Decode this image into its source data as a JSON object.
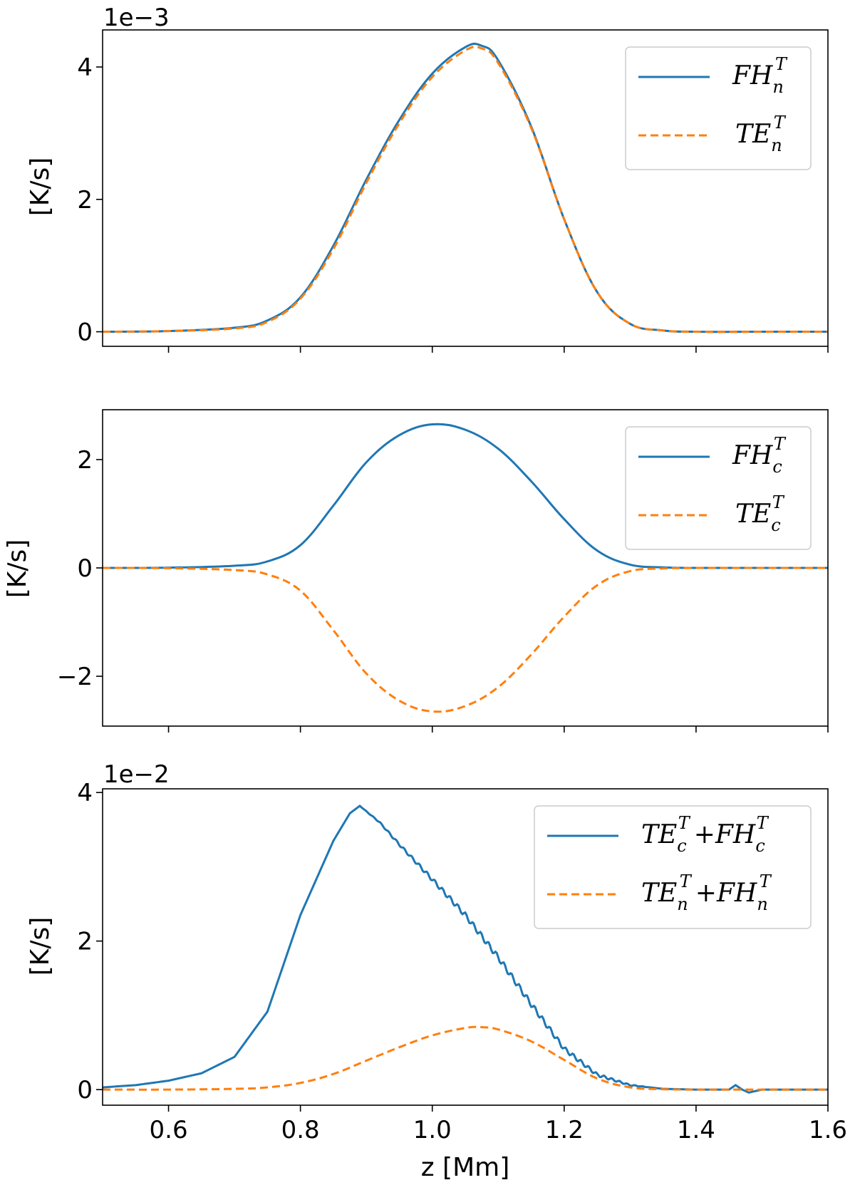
{
  "colors": {
    "blue": "#1f77b4",
    "orange": "#ff7f0e"
  },
  "chart_data": [
    {
      "type": "line",
      "panel": "top",
      "offset_label": "1e−3",
      "ylabel": "[K/s]",
      "xlabel": "",
      "xlim": [
        0.5,
        1.6
      ],
      "ylim": [
        -0.00022,
        0.00456
      ],
      "yticks": [
        0,
        0.002,
        0.004
      ],
      "ytick_labels": [
        "0",
        "2",
        "4"
      ],
      "xticks": [
        0.6,
        0.8,
        1.0,
        1.2,
        1.4,
        1.6
      ],
      "show_x_tick_labels": false,
      "legend": {
        "placement": "top-right"
      },
      "series": [
        {
          "name": "FH_n^T",
          "legend_base": "FH",
          "legend_sub": "n",
          "legend_sup": "T",
          "style": "solid",
          "color": "#1f77b4",
          "x": [
            0.5,
            0.6,
            0.7,
            0.75,
            0.8,
            0.85,
            0.9,
            0.95,
            1.0,
            1.05,
            1.075,
            1.1,
            1.15,
            1.2,
            1.25,
            1.3,
            1.35,
            1.4,
            1.5,
            1.6
          ],
          "y": [
            0,
            1e-05,
            6e-05,
            0.00017,
            0.00052,
            0.0013,
            0.0023,
            0.0032,
            0.0039,
            0.0043,
            0.00432,
            0.0041,
            0.0031,
            0.0017,
            0.0006,
            0.00012,
            2e-05,
            0,
            0,
            0
          ]
        },
        {
          "name": "TE_n^T",
          "legend_base": "TE",
          "legend_sub": "n",
          "legend_sup": "T",
          "style": "dashed",
          "color": "#ff7f0e",
          "x": [
            0.5,
            0.6,
            0.7,
            0.75,
            0.8,
            0.85,
            0.9,
            0.95,
            1.0,
            1.05,
            1.075,
            1.1,
            1.15,
            1.2,
            1.25,
            1.3,
            1.35,
            1.4,
            1.5,
            1.6
          ],
          "y": [
            0,
            1e-05,
            5e-05,
            0.00015,
            0.0005,
            0.00125,
            0.00225,
            0.00315,
            0.00385,
            0.00425,
            0.00428,
            0.00406,
            0.00308,
            0.0017,
            0.0006,
            0.00012,
            2e-05,
            0,
            0,
            0
          ]
        }
      ]
    },
    {
      "type": "line",
      "panel": "middle",
      "offset_label": "",
      "ylabel": "[K/s]",
      "xlabel": "",
      "xlim": [
        0.5,
        1.6
      ],
      "ylim": [
        -2.92,
        2.92
      ],
      "yticks": [
        -2,
        0,
        2
      ],
      "ytick_labels": [
        "−2",
        "0",
        "2"
      ],
      "xticks": [
        0.6,
        0.8,
        1.0,
        1.2,
        1.4,
        1.6
      ],
      "show_x_tick_labels": false,
      "legend": {
        "placement": "top-right"
      },
      "series": [
        {
          "name": "FH_c^T",
          "legend_base": "FH",
          "legend_sub": "c",
          "legend_sup": "T",
          "style": "solid",
          "color": "#1f77b4",
          "x": [
            0.5,
            0.6,
            0.7,
            0.75,
            0.8,
            0.85,
            0.9,
            0.95,
            1.0,
            1.05,
            1.1,
            1.15,
            1.2,
            1.25,
            1.3,
            1.35,
            1.4,
            1.5,
            1.6
          ],
          "y": [
            0,
            0.005,
            0.04,
            0.12,
            0.42,
            1.15,
            1.95,
            2.45,
            2.65,
            2.55,
            2.2,
            1.6,
            0.9,
            0.32,
            0.06,
            0.01,
            0,
            0,
            0
          ]
        },
        {
          "name": "TE_c^T",
          "legend_base": "TE",
          "legend_sub": "c",
          "legend_sup": "T",
          "style": "dashed",
          "color": "#ff7f0e",
          "x": [
            0.5,
            0.6,
            0.7,
            0.75,
            0.8,
            0.85,
            0.9,
            0.95,
            1.0,
            1.05,
            1.1,
            1.15,
            1.2,
            1.25,
            1.3,
            1.35,
            1.4,
            1.5,
            1.6
          ],
          "y": [
            0,
            -0.005,
            -0.04,
            -0.12,
            -0.42,
            -1.15,
            -1.95,
            -2.45,
            -2.65,
            -2.55,
            -2.2,
            -1.6,
            -0.9,
            -0.32,
            -0.06,
            -0.01,
            0,
            0,
            0
          ]
        }
      ]
    },
    {
      "type": "line",
      "panel": "bottom",
      "offset_label": "1e−2",
      "ylabel": "[K/s]",
      "xlabel": "z [Mm]",
      "xlim": [
        0.5,
        1.6
      ],
      "ylim": [
        -0.0021,
        0.0405
      ],
      "yticks": [
        0,
        0.02,
        0.04
      ],
      "ytick_labels": [
        "0",
        "2",
        "4"
      ],
      "xticks": [
        0.6,
        0.8,
        1.0,
        1.2,
        1.4,
        1.6
      ],
      "xtick_labels": [
        "0.6",
        "0.8",
        "1.0",
        "1.2",
        "1.4",
        "1.6"
      ],
      "show_x_tick_labels": true,
      "legend": {
        "placement": "top-right"
      },
      "series": [
        {
          "name": "TE_c^T + FH_c^T",
          "legend_terms": [
            [
              "TE",
              "c",
              "T"
            ],
            [
              "FH",
              "c",
              "T"
            ]
          ],
          "style": "solid",
          "color": "#1f77b4",
          "x": [
            0.5,
            0.55,
            0.6,
            0.65,
            0.7,
            0.75,
            0.8,
            0.85,
            0.875,
            0.89,
            0.92,
            0.95,
            1.0,
            1.05,
            1.1,
            1.15,
            1.2,
            1.25,
            1.3,
            1.35,
            1.4,
            1.45,
            1.46,
            1.47,
            1.48,
            1.5,
            1.6
          ],
          "y": [
            0.0003,
            0.0006,
            0.0012,
            0.0022,
            0.0044,
            0.0105,
            0.0235,
            0.0335,
            0.0372,
            0.0382,
            0.036,
            0.033,
            0.0283,
            0.0235,
            0.0178,
            0.0115,
            0.0055,
            0.002,
            0.0006,
            0.0001,
            0,
            0,
            0.0006,
            0.0,
            -0.0004,
            0,
            0
          ]
        },
        {
          "name": "TE_n^T + FH_n^T",
          "legend_terms": [
            [
              "TE",
              "n",
              "T"
            ],
            [
              "FH",
              "n",
              "T"
            ]
          ],
          "style": "dashed",
          "color": "#ff7f0e",
          "x": [
            0.5,
            0.6,
            0.7,
            0.75,
            0.8,
            0.85,
            0.9,
            0.95,
            1.0,
            1.05,
            1.075,
            1.1,
            1.15,
            1.2,
            1.25,
            1.3,
            1.35,
            1.4,
            1.5,
            1.6
          ],
          "y": [
            0,
            0,
            0.0001,
            0.0003,
            0.0009,
            0.0021,
            0.0039,
            0.0057,
            0.0073,
            0.0083,
            0.0084,
            0.0081,
            0.0065,
            0.004,
            0.0015,
            0.0003,
            5e-05,
            0,
            0,
            0
          ]
        }
      ]
    }
  ]
}
